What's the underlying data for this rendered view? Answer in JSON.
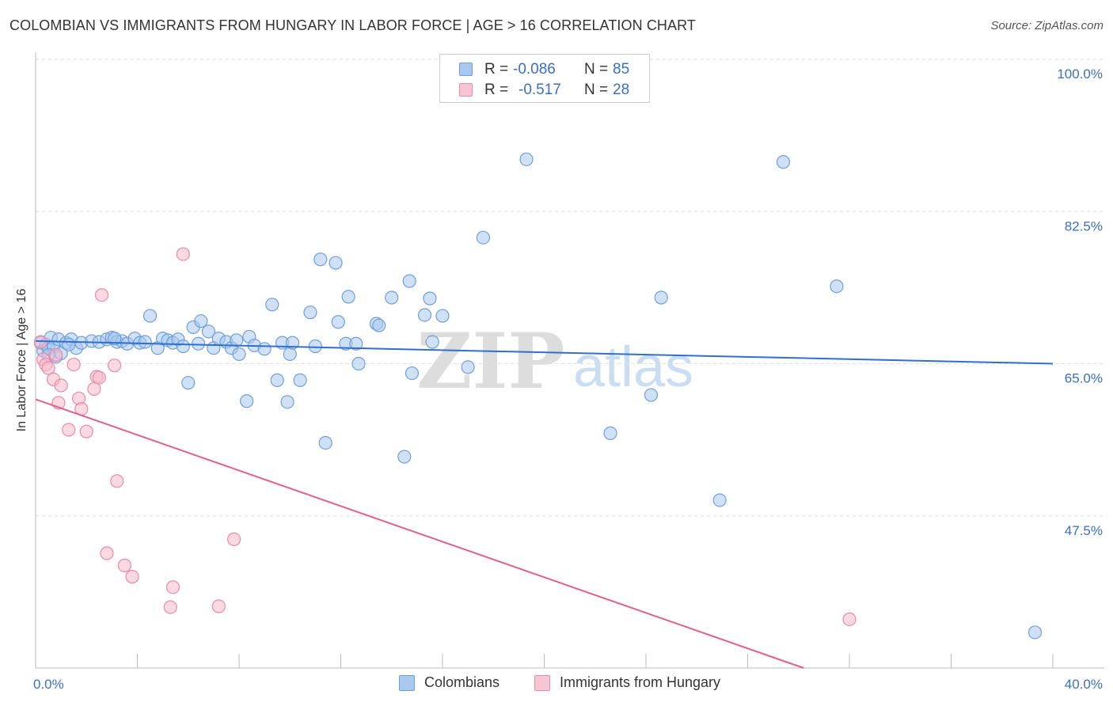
{
  "title": "COLOMBIAN VS IMMIGRANTS FROM HUNGARY IN LABOR FORCE | AGE > 16 CORRELATION CHART",
  "source": "Source: ZipAtlas.com",
  "watermark": {
    "zip": "ZIP",
    "atlas": "atlas"
  },
  "legend": {
    "r_label": "R =",
    "n_label": "N =",
    "series": [
      {
        "name": "Colombians",
        "r": "-0.086",
        "n": "85"
      },
      {
        "name": "Immigrants from Hungary",
        "r": "-0.517",
        "n": "28"
      }
    ]
  },
  "colors": {
    "blue_fill": "#a9c8ee",
    "blue_stroke": "#6f9fdb",
    "blue_line": "#2f6fcf",
    "pink_fill": "#f7b9cc",
    "pink_stroke": "#e98aa8",
    "pink_line": "#e0608f",
    "tick_text": "#3a6fc4",
    "grid": "#dddddd"
  },
  "chart_data": {
    "type": "scatter",
    "title": "COLOMBIAN VS IMMIGRANTS FROM HUNGARY IN LABOR FORCE | AGE > 16 CORRELATION CHART",
    "xlabel": "",
    "ylabel": "In Labor Force | Age > 16",
    "xlim": [
      0,
      40
    ],
    "ylim": [
      30,
      100
    ],
    "x_tick_labels": [
      "0.0%",
      "40.0%"
    ],
    "y_ticks": [
      47.5,
      65.0,
      82.5,
      100.0
    ],
    "y_tick_labels": [
      "47.5%",
      "65.0%",
      "82.5%",
      "100.0%"
    ],
    "grid": true,
    "series": [
      {
        "name": "Colombians",
        "r": -0.086,
        "n": 85,
        "trend": {
          "x": [
            0,
            40
          ],
          "y": [
            67.6,
            65.0
          ]
        },
        "points": [
          [
            0.2,
            67.4
          ],
          [
            0.3,
            66.5
          ],
          [
            0.4,
            67.2
          ],
          [
            0.5,
            66.8
          ],
          [
            0.6,
            68.0
          ],
          [
            0.7,
            66.9
          ],
          [
            0.8,
            65.8
          ],
          [
            0.9,
            67.8
          ],
          [
            1.0,
            66.2
          ],
          [
            1.2,
            67.4
          ],
          [
            1.4,
            67.8
          ],
          [
            1.6,
            66.8
          ],
          [
            1.8,
            67.4
          ],
          [
            2.2,
            67.6
          ],
          [
            2.5,
            67.5
          ],
          [
            2.8,
            67.8
          ],
          [
            3.0,
            68.0
          ],
          [
            3.2,
            67.5
          ],
          [
            3.4,
            67.6
          ],
          [
            3.6,
            67.3
          ],
          [
            3.9,
            67.9
          ],
          [
            4.1,
            67.4
          ],
          [
            4.3,
            67.5
          ],
          [
            4.5,
            70.5
          ],
          [
            4.8,
            66.8
          ],
          [
            5.0,
            67.9
          ],
          [
            5.2,
            67.7
          ],
          [
            5.4,
            67.4
          ],
          [
            5.6,
            67.8
          ],
          [
            5.8,
            67.0
          ],
          [
            6.0,
            62.8
          ],
          [
            6.2,
            69.2
          ],
          [
            6.5,
            69.9
          ],
          [
            6.8,
            68.7
          ],
          [
            7.0,
            66.8
          ],
          [
            7.2,
            67.9
          ],
          [
            7.5,
            67.5
          ],
          [
            7.7,
            66.8
          ],
          [
            7.9,
            67.7
          ],
          [
            8.0,
            66.1
          ],
          [
            8.3,
            60.7
          ],
          [
            8.4,
            68.1
          ],
          [
            8.6,
            67.1
          ],
          [
            9.0,
            66.7
          ],
          [
            9.3,
            71.8
          ],
          [
            9.5,
            63.1
          ],
          [
            9.9,
            60.6
          ],
          [
            10.0,
            66.1
          ],
          [
            10.4,
            63.1
          ],
          [
            10.8,
            70.9
          ],
          [
            11.2,
            77.0
          ],
          [
            11.4,
            55.9
          ],
          [
            11.8,
            76.6
          ],
          [
            11.9,
            69.8
          ],
          [
            12.2,
            67.3
          ],
          [
            12.3,
            72.7
          ],
          [
            12.6,
            67.3
          ],
          [
            12.7,
            65.0
          ],
          [
            13.4,
            69.6
          ],
          [
            13.5,
            69.4
          ],
          [
            14.0,
            72.6
          ],
          [
            14.5,
            54.3
          ],
          [
            14.7,
            74.5
          ],
          [
            14.8,
            63.9
          ],
          [
            15.3,
            70.6
          ],
          [
            15.5,
            72.5
          ],
          [
            15.6,
            67.5
          ],
          [
            16.0,
            70.5
          ],
          [
            17.0,
            64.6
          ],
          [
            17.6,
            79.5
          ],
          [
            19.3,
            88.5
          ],
          [
            22.6,
            57.0
          ],
          [
            24.2,
            61.4
          ],
          [
            24.6,
            72.6
          ],
          [
            26.9,
            49.3
          ],
          [
            29.4,
            88.2
          ],
          [
            31.5,
            73.9
          ],
          [
            39.3,
            34.1
          ],
          [
            0.5,
            66.0
          ],
          [
            1.3,
            67.2
          ],
          [
            3.1,
            67.9
          ],
          [
            6.4,
            67.3
          ],
          [
            9.7,
            67.4
          ],
          [
            10.1,
            67.4
          ],
          [
            11.0,
            67.0
          ]
        ]
      },
      {
        "name": "Immigrants from Hungary",
        "r": -0.517,
        "n": 28,
        "trend": {
          "x": [
            0,
            30.2
          ],
          "y": [
            60.9,
            30.0
          ]
        },
        "points": [
          [
            0.2,
            67.5
          ],
          [
            0.3,
            65.5
          ],
          [
            0.4,
            64.9
          ],
          [
            0.5,
            64.5
          ],
          [
            0.7,
            63.2
          ],
          [
            0.8,
            66.0
          ],
          [
            0.9,
            60.5
          ],
          [
            1.0,
            62.5
          ],
          [
            1.3,
            57.4
          ],
          [
            1.5,
            64.9
          ],
          [
            1.7,
            61.0
          ],
          [
            1.8,
            59.8
          ],
          [
            2.0,
            57.2
          ],
          [
            2.3,
            62.1
          ],
          [
            2.4,
            63.5
          ],
          [
            2.5,
            63.4
          ],
          [
            2.6,
            72.9
          ],
          [
            2.8,
            43.2
          ],
          [
            3.1,
            64.8
          ],
          [
            3.2,
            51.5
          ],
          [
            3.5,
            41.8
          ],
          [
            3.8,
            40.5
          ],
          [
            5.3,
            37.0
          ],
          [
            5.4,
            39.3
          ],
          [
            5.8,
            77.6
          ],
          [
            7.2,
            37.1
          ],
          [
            7.8,
            44.8
          ],
          [
            32.0,
            35.6
          ]
        ]
      }
    ]
  }
}
